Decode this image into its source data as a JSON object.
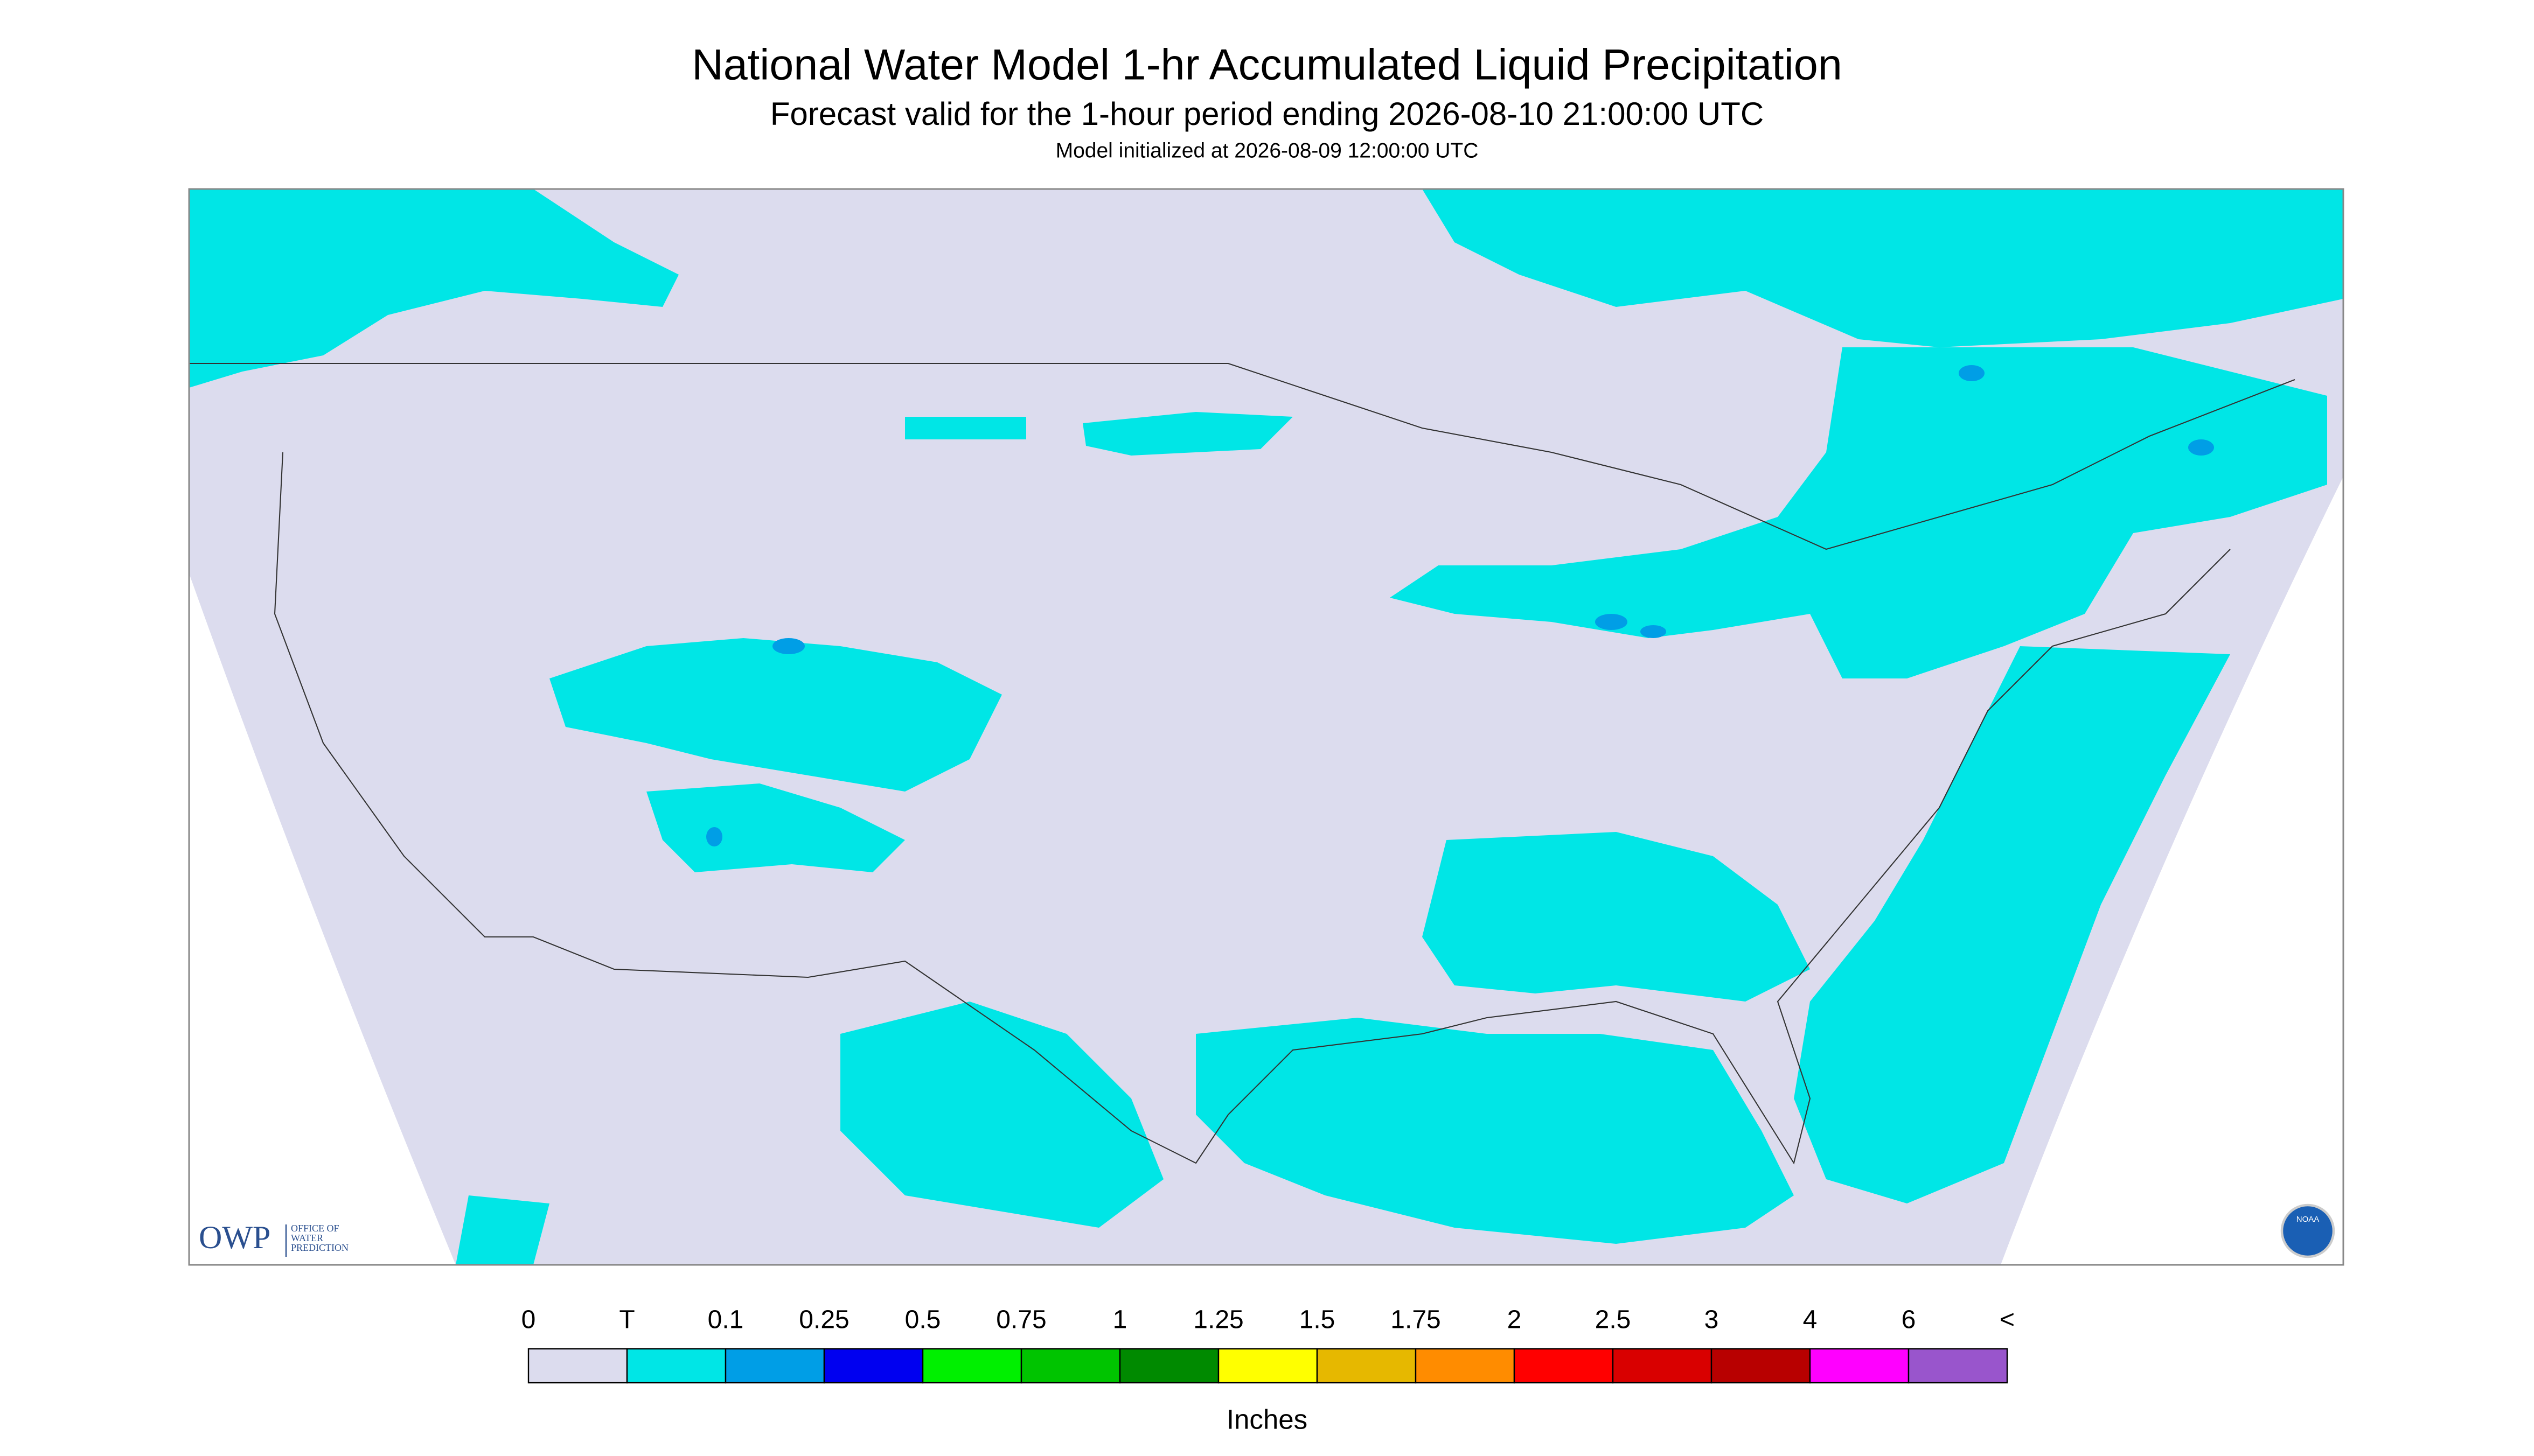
{
  "header": {
    "title": "National Water Model 1-hr Accumulated Liquid Precipitation",
    "subtitle": "Forecast valid for the 1-hour period ending 2026-08-10 21:00:00 UTC",
    "note": "Model initialized at 2026-08-09 12:00:00 UTC"
  },
  "legend": {
    "labels": [
      "0",
      "T",
      "0.1",
      "0.25",
      "0.5",
      "0.75",
      "1",
      "1.25",
      "1.5",
      "1.75",
      "2",
      "2.5",
      "3",
      "4",
      "6",
      "<"
    ],
    "colors": [
      "#dcdcee",
      "#00e6e6",
      "#009ee6",
      "#0000f0",
      "#00f000",
      "#00c400",
      "#008a00",
      "#ffff00",
      "#e6b800",
      "#ff8c00",
      "#ff0000",
      "#d90000",
      "#b80000",
      "#ff00ff",
      "#9955cc"
    ],
    "unit": "Inches"
  },
  "logos": {
    "owp": "OWP",
    "owp_text": [
      "OFFICE OF",
      "WATER",
      "PREDICTION"
    ],
    "noaa": "NOAA"
  }
}
